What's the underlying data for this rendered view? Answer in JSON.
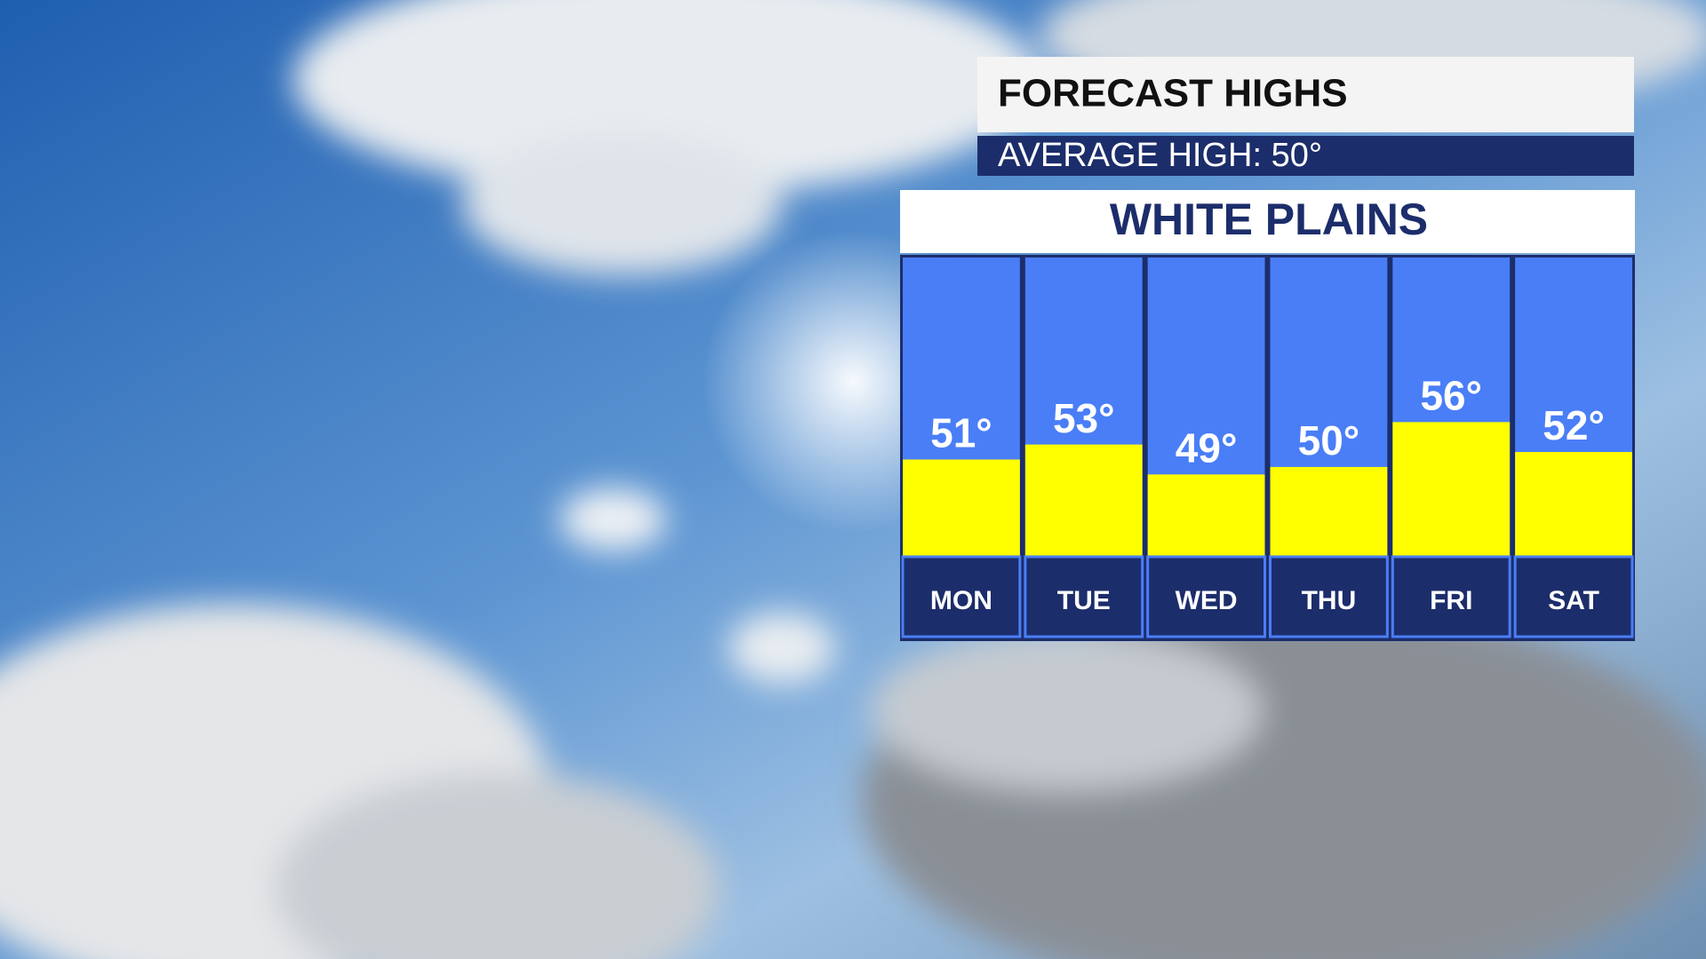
{
  "chart_data": {
    "type": "bar",
    "title": "FORECAST HIGHS",
    "subtitle": "AVERAGE HIGH: 50°",
    "location": "WHITE PLAINS",
    "categories": [
      "MON",
      "TUE",
      "WED",
      "THU",
      "FRI",
      "SAT"
    ],
    "values": [
      51,
      53,
      49,
      50,
      56,
      52
    ],
    "value_labels": [
      "51°",
      "53°",
      "49°",
      "50°",
      "56°",
      "52°"
    ],
    "color": "#ffff00",
    "ylim": [
      38,
      78
    ]
  }
}
